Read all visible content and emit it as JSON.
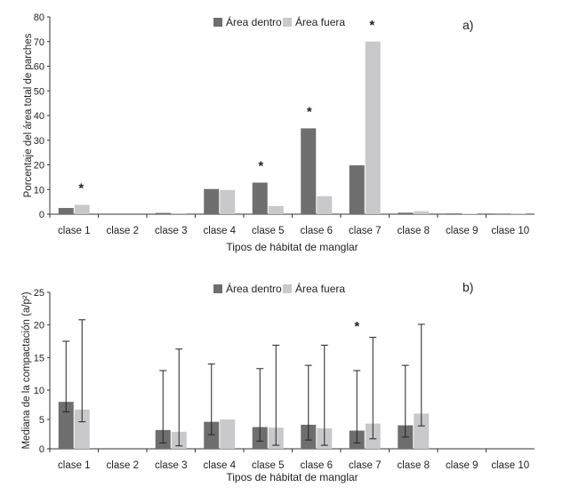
{
  "colors": {
    "dentro": "#6e6e6e",
    "fuera": "#c9c9cb",
    "axis": "#333333",
    "text": "#222222"
  },
  "chart_data": [
    {
      "panel_label": "a)",
      "type": "bar",
      "ylabel": "Porcentaje del área total de parches",
      "xlabel": "Tipos de hábitat de manglar",
      "ylim": [
        0,
        80
      ],
      "yticks": [
        "0",
        "10",
        "20",
        "30",
        "40",
        "50",
        "60",
        "70",
        "80"
      ],
      "legend": "top",
      "categories": [
        "clase 1",
        "clase 2",
        "clase 3",
        "clase 4",
        "clase 5",
        "clase 6",
        "clase 7",
        "clase 8",
        "clase 9",
        "clase 10"
      ],
      "series": [
        {
          "name": "Área dentro",
          "values": [
            2.5,
            0,
            0.5,
            10.2,
            12.8,
            34.8,
            19.8,
            0.6,
            0.3,
            0.1
          ]
        },
        {
          "name": "Área fuera",
          "values": [
            3.8,
            0,
            0.1,
            9.8,
            3.3,
            7.3,
            70.0,
            1.2,
            0.2,
            0.3
          ]
        }
      ],
      "significance_marker": "*",
      "significant": [
        "clase 1",
        "clase 5",
        "clase 6",
        "clase 7"
      ]
    },
    {
      "panel_label": "b)",
      "type": "bar",
      "ylabel": "Mediana de la compactación (a/p²)",
      "xlabel": "Tipos de hábitat de manglar",
      "yticks": [
        {
          "label": "0",
          "value": 0
        },
        {
          "label": "5",
          "value": 5
        },
        {
          "label": "10",
          "value": 10
        },
        {
          "label": "15",
          "value": 15
        },
        {
          "label": "20",
          "value": 20
        },
        {
          "label": "25",
          "value": 25
        }
      ],
      "legend": "top",
      "categories": [
        "clase 1",
        "clase 2",
        "clase 3",
        "clase 4",
        "clase 5",
        "clase 6",
        "clase 7",
        "clase 8",
        "clase 9",
        "clase 10"
      ],
      "series": [
        {
          "name": "Área dentro",
          "values": [
            8.0,
            null,
            3.2,
            4.6,
            3.7,
            4.1,
            3.1,
            4.0,
            null,
            null
          ],
          "err_low": [
            6.3,
            null,
            1.0,
            2.4,
            1.3,
            1.5,
            1.0,
            2.0,
            null,
            null
          ],
          "err_high": [
            17.5,
            null,
            13.0,
            14.0,
            13.3,
            13.8,
            13.0,
            13.8,
            null,
            null
          ]
        },
        {
          "name": "Área fuera",
          "values": [
            6.7,
            null,
            2.9,
            5.0,
            3.6,
            3.5,
            4.3,
            6.0,
            null,
            null
          ],
          "err_low": [
            4.6,
            null,
            0.5,
            null,
            0.6,
            0.6,
            1.7,
            3.9,
            null,
            null
          ],
          "err_high": [
            20.8,
            null,
            16.3,
            null,
            16.9,
            16.9,
            18.1,
            20.1,
            null,
            null
          ]
        }
      ],
      "significance_marker": "*",
      "significant": [
        "clase 7"
      ]
    }
  ]
}
